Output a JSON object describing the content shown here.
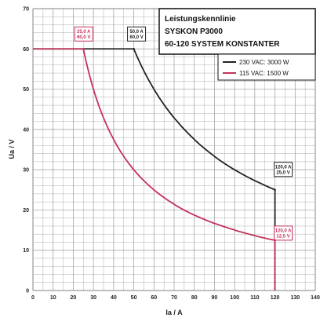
{
  "chart_data": {
    "type": "line",
    "title_lines": [
      "Leistungskennlinie",
      "SYSKON P3000",
      "60-120 SYSTEM KONSTANTER"
    ],
    "xlabel": "Ia / A",
    "ylabel": "Ua / V",
    "xlim": [
      0,
      140
    ],
    "ylim": [
      0,
      70
    ],
    "x_ticks": [
      "0",
      "10",
      "20",
      "30",
      "40",
      "50",
      "60",
      "70",
      "80",
      "90",
      "100",
      "110",
      "120",
      "130",
      "140"
    ],
    "y_ticks": [
      "0",
      "10",
      "20",
      "30",
      "40",
      "50",
      "60",
      "70"
    ],
    "grid": true,
    "legend_position": "top-right",
    "colors": {
      "series_230": "#222222",
      "series_115": "#c4325a",
      "grid": "#9a9a9a"
    },
    "series": [
      {
        "name": "230 VAC: 3000 W",
        "points": [
          [
            0,
            60
          ],
          [
            50,
            60
          ],
          [
            60,
            50
          ],
          [
            70,
            42.9
          ],
          [
            80,
            37.5
          ],
          [
            90,
            33.3
          ],
          [
            100,
            30
          ],
          [
            110,
            27.3
          ],
          [
            120,
            25
          ],
          [
            120,
            0
          ]
        ]
      },
      {
        "name": "115 VAC: 1500 W",
        "points": [
          [
            0,
            60
          ],
          [
            25,
            60
          ],
          [
            30,
            50
          ],
          [
            35,
            42.9
          ],
          [
            40,
            37.5
          ],
          [
            50,
            30
          ],
          [
            60,
            25
          ],
          [
            70,
            21.4
          ],
          [
            80,
            18.75
          ],
          [
            90,
            16.7
          ],
          [
            100,
            15
          ],
          [
            110,
            13.6
          ],
          [
            120,
            12.5
          ],
          [
            120,
            0
          ]
        ]
      }
    ],
    "annotations": [
      {
        "series": 1,
        "x": 25,
        "y": 60,
        "lines": [
          "25,0 A",
          "60,0 V"
        ]
      },
      {
        "series": 0,
        "x": 50,
        "y": 60,
        "lines": [
          "50,0 A",
          "60,0 V"
        ]
      },
      {
        "series": 0,
        "x": 120,
        "y": 25,
        "lines": [
          "120,0 A",
          "25,0 V"
        ]
      },
      {
        "series": 1,
        "x": 120,
        "y": 12.5,
        "lines": [
          "120,0 A",
          "12,5 V"
        ]
      }
    ]
  }
}
